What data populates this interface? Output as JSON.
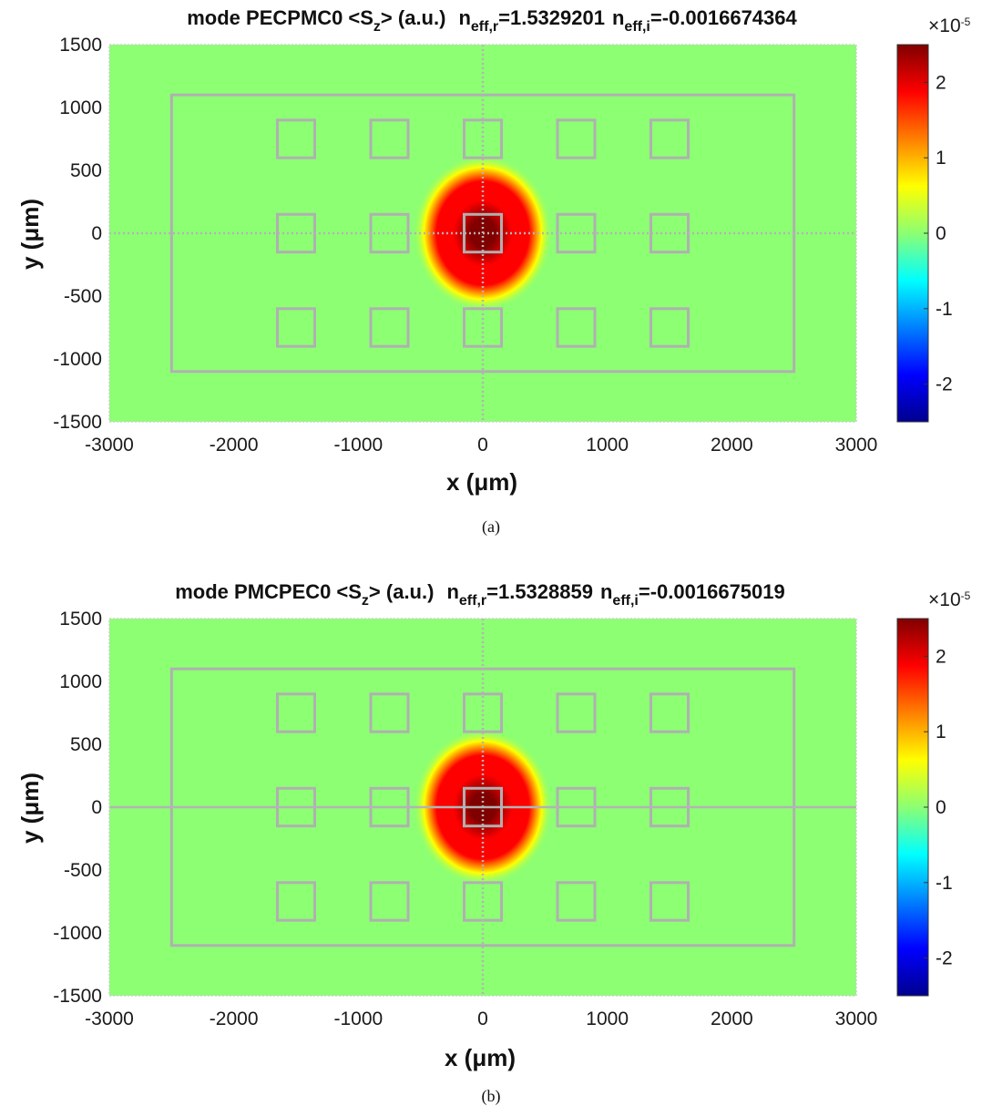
{
  "chart_data": [
    {
      "type": "heatmap",
      "title": {
        "mode_prefix": "mode ",
        "mode": "PECPMC0",
        "quantity": "<S",
        "quantity_sub": "z",
        "quantity_suffix": "> (a.u.)",
        "neff_r_label": "n",
        "neff_r_sub": "eff,r",
        "neff_r_value": "=1.5329201",
        "neff_i_label": "n",
        "neff_i_sub": "eff,i",
        "neff_i_value": "=-0.0016674364"
      },
      "xlabel": "x (μm)",
      "ylabel": "y (μm)",
      "xlim": [
        -3000,
        3000
      ],
      "ylim": [
        -1500,
        1500
      ],
      "xticks": [
        -3000,
        -2000,
        -1000,
        0,
        1000,
        2000,
        3000
      ],
      "yticks": [
        -1500,
        -1000,
        -500,
        0,
        500,
        1000,
        1500
      ],
      "colorbar": {
        "min": -2.5,
        "max": 2.5,
        "ticks": [
          -2,
          -1,
          0,
          1,
          2
        ],
        "exponent_label": "×10",
        "exponent": "-5",
        "colormap": "jet"
      },
      "field_peak": {
        "x": 0,
        "y": 0,
        "value": 2.5,
        "extent_x": 450,
        "extent_y": 500
      },
      "outer_rect": {
        "x": [
          -2500,
          2500
        ],
        "y": [
          -1100,
          1100
        ]
      },
      "holes": {
        "centers_x": [
          -1500,
          -750,
          0,
          750,
          1500
        ],
        "centers_y": [
          750,
          0,
          -750
        ],
        "size": 300
      },
      "symmetry_lines": {
        "vertical": "dotted",
        "horizontal": "dotted"
      },
      "caption": "(a)"
    },
    {
      "type": "heatmap",
      "title": {
        "mode_prefix": "mode ",
        "mode": "PMCPEC0",
        "quantity": "<S",
        "quantity_sub": "z",
        "quantity_suffix": "> (a.u.)",
        "neff_r_label": "n",
        "neff_r_sub": "eff,r",
        "neff_r_value": "=1.5328859",
        "neff_i_label": "n",
        "neff_i_sub": "eff,i",
        "neff_i_value": "=-0.0016675019"
      },
      "xlabel": "x (μm)",
      "ylabel": "y (μm)",
      "xlim": [
        -3000,
        3000
      ],
      "ylim": [
        -1500,
        1500
      ],
      "xticks": [
        -3000,
        -2000,
        -1000,
        0,
        1000,
        2000,
        3000
      ],
      "yticks": [
        -1500,
        -1000,
        -500,
        0,
        500,
        1000,
        1500
      ],
      "colorbar": {
        "min": -2.5,
        "max": 2.5,
        "ticks": [
          -2,
          -1,
          0,
          1,
          2
        ],
        "exponent_label": "×10",
        "exponent": "-5",
        "colormap": "jet"
      },
      "field_peak": {
        "x": 0,
        "y": 0,
        "value": 2.5,
        "extent_x": 450,
        "extent_y": 500
      },
      "outer_rect": {
        "x": [
          -2500,
          2500
        ],
        "y": [
          -1100,
          1100
        ]
      },
      "holes": {
        "centers_x": [
          -1500,
          -750,
          0,
          750,
          1500
        ],
        "centers_y": [
          750,
          0,
          -750
        ],
        "size": 300
      },
      "symmetry_lines": {
        "vertical": "dotted",
        "horizontal": "solid"
      },
      "caption": "(b)"
    }
  ],
  "colors": {
    "background_field": "#8cff73",
    "structure_lines": "#b0b0b0",
    "symmetry_lines": "#b3b3b3"
  }
}
